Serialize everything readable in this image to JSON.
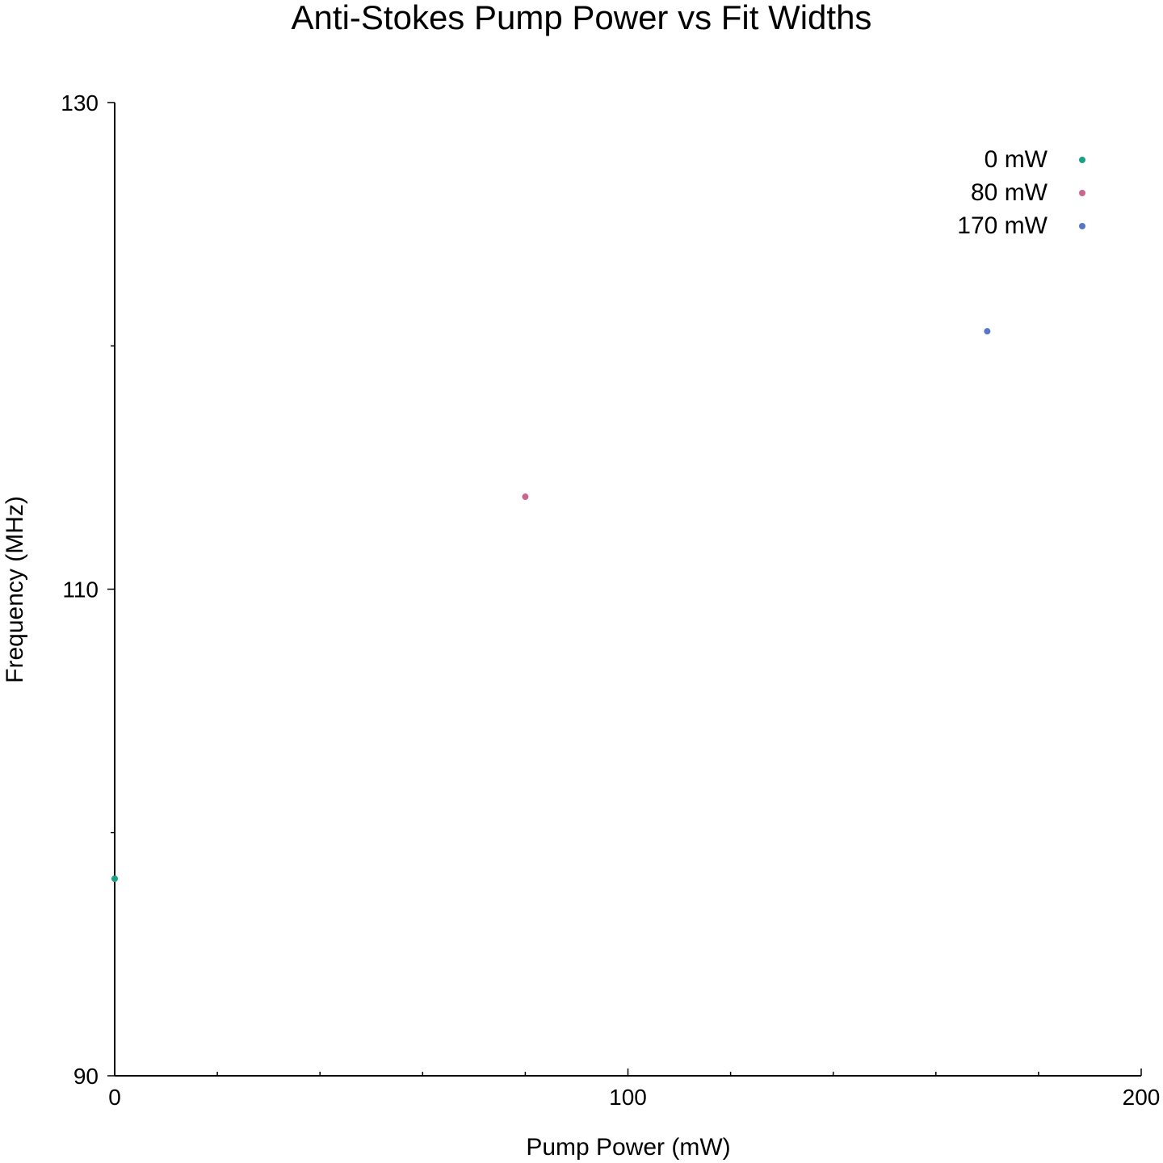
{
  "chart_data": {
    "type": "scatter",
    "title": "Anti-Stokes Pump Power vs Fit Widths",
    "xlabel": "Pump Power (mW)",
    "ylabel": "Frequency (MHz)",
    "xlim": [
      0,
      200
    ],
    "ylim": [
      90,
      130
    ],
    "x_major_ticks": [
      0,
      100,
      200
    ],
    "x_tick_labels": [
      "0",
      "100",
      "200"
    ],
    "x_minor_ticks": [
      20,
      40,
      60,
      80,
      120,
      140,
      160,
      180
    ],
    "y_major_ticks": [
      90,
      110,
      130
    ],
    "y_tick_labels": [
      "90",
      "110",
      "130"
    ],
    "y_minor_ticks": [
      100,
      120
    ],
    "grid": false,
    "legend_position": "top-right",
    "series": [
      {
        "name": "0 mW",
        "color": "#1aa085",
        "points": [
          {
            "x": 0,
            "y": 98.1
          }
        ]
      },
      {
        "name": "80 mW",
        "color": "#cc6690",
        "points": [
          {
            "x": 80,
            "y": 113.8
          }
        ]
      },
      {
        "name": "170 mW",
        "color": "#5577c6",
        "points": [
          {
            "x": 170,
            "y": 120.6
          }
        ]
      }
    ]
  }
}
